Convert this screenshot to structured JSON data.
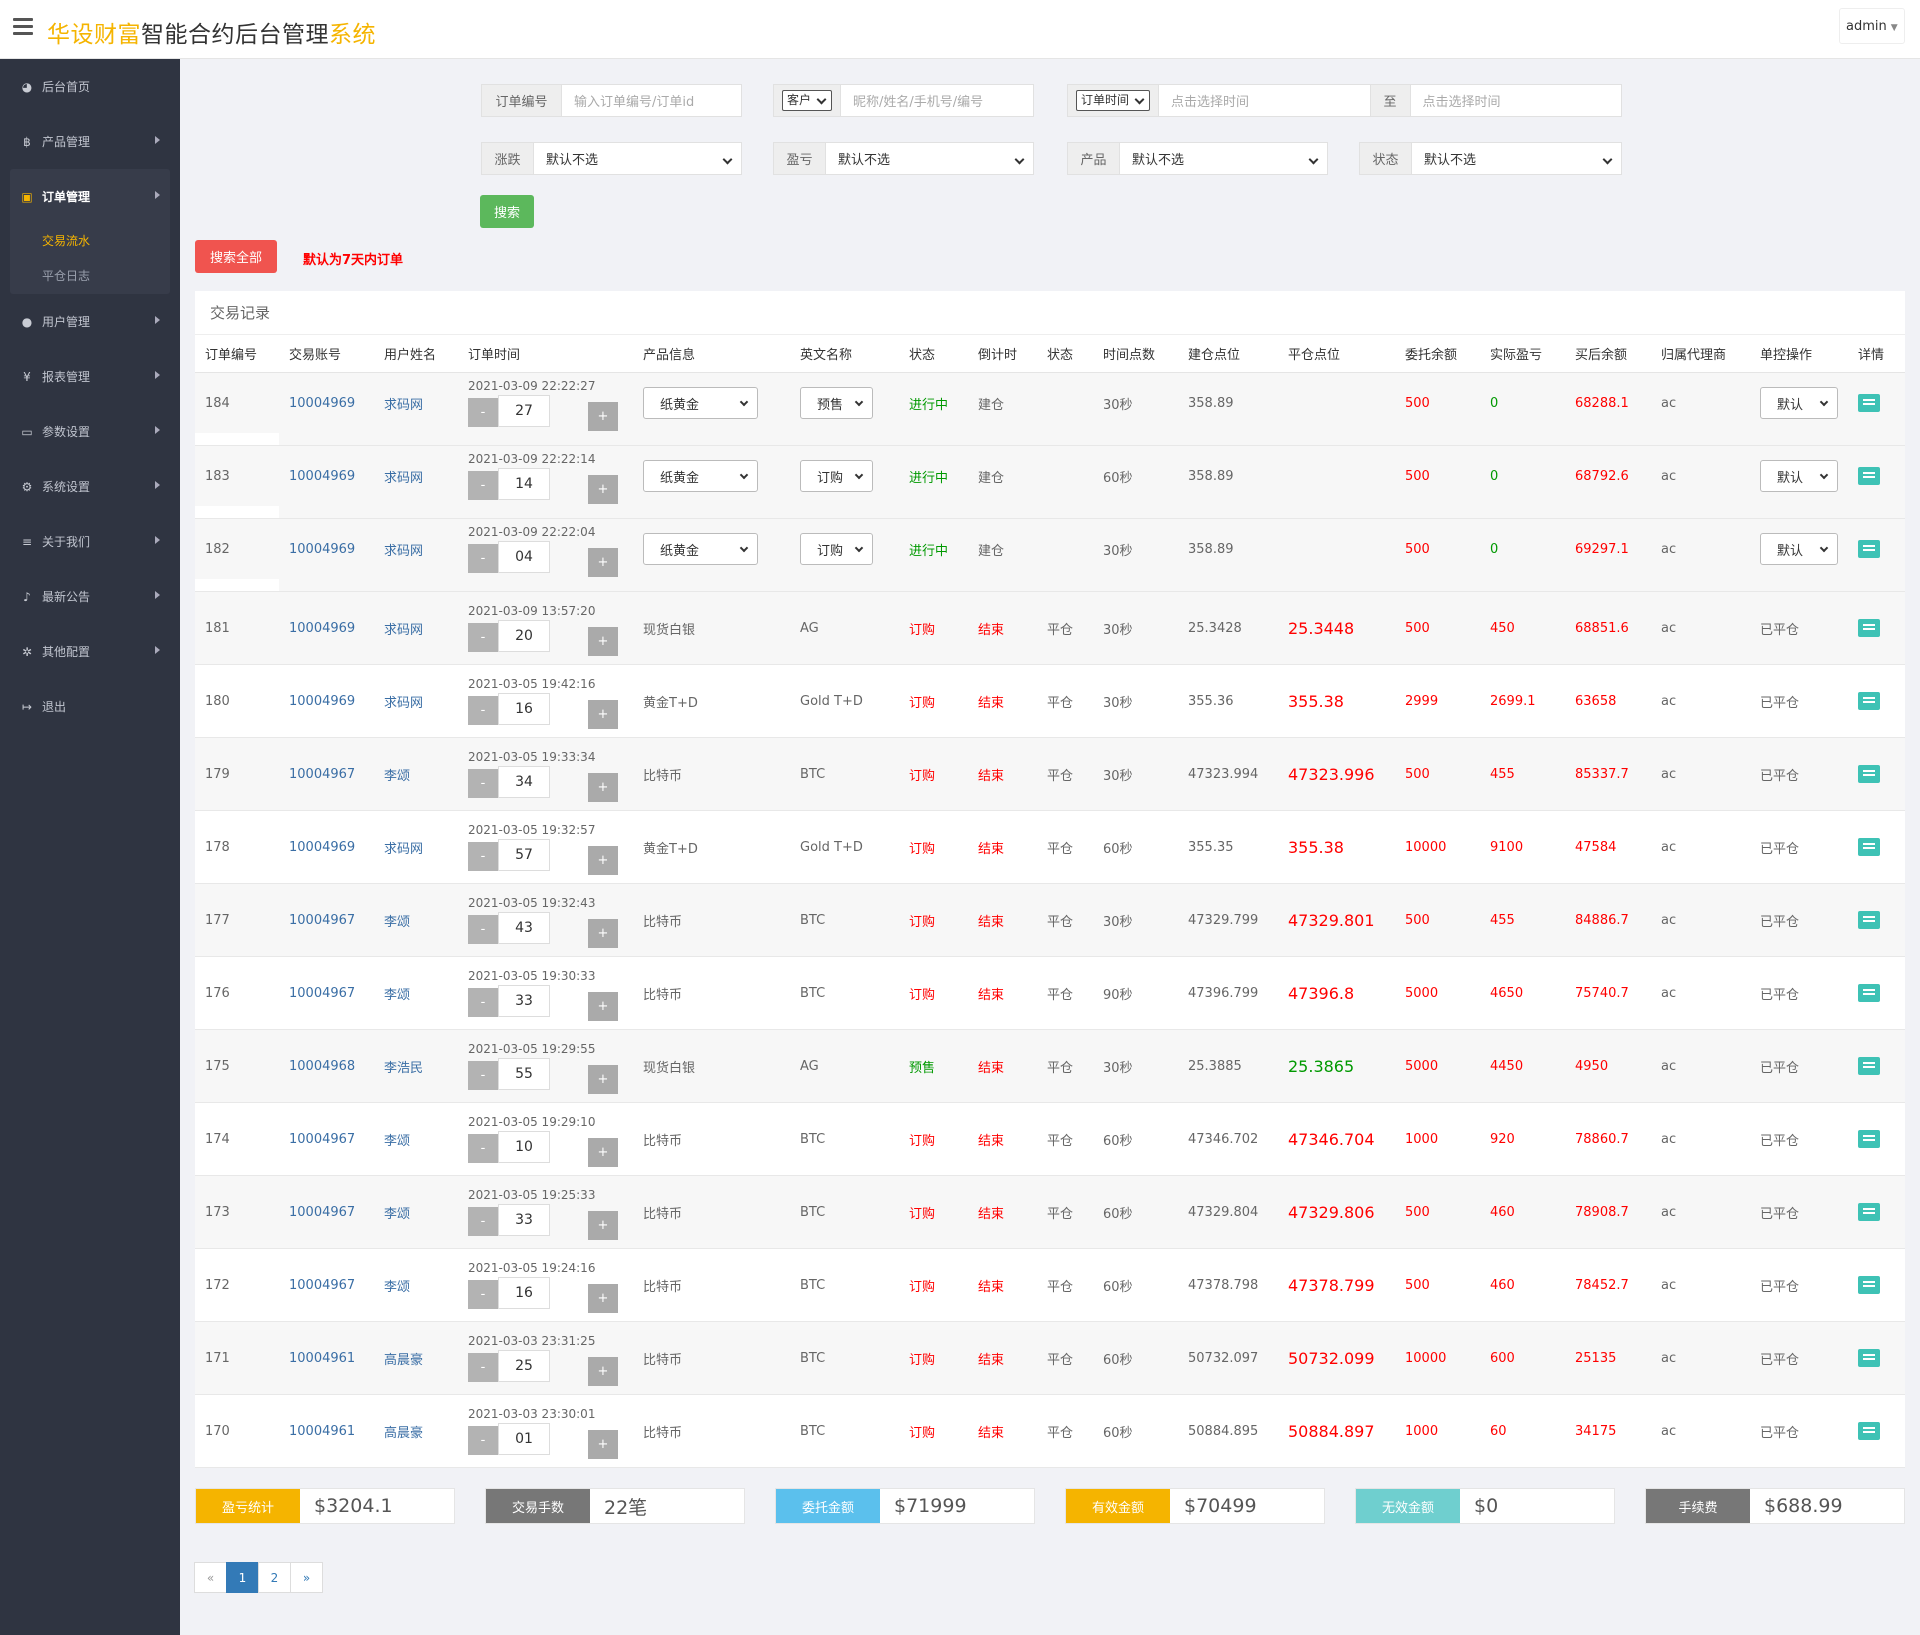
{
  "header": {
    "title_part1": "华设财富",
    "title_part2": "智能合约后台管理",
    "title_part3": "系统",
    "user": "admin"
  },
  "sidebar": {
    "items": [
      {
        "label": "后台首页",
        "icon": "dashboard-icon"
      },
      {
        "label": "产品管理",
        "icon": "bitcoin-icon"
      },
      {
        "label": "订单管理",
        "icon": "files-icon"
      },
      {
        "label": "用户管理",
        "icon": "user-icon"
      },
      {
        "label": "报表管理",
        "icon": "yen-icon"
      },
      {
        "label": "参数设置",
        "icon": "file-icon"
      },
      {
        "label": "系统设置",
        "icon": "cogs-icon"
      },
      {
        "label": "关于我们",
        "icon": "list-icon"
      },
      {
        "label": "最新公告",
        "icon": "bell-icon"
      },
      {
        "label": "其他配置",
        "icon": "gear-icon"
      },
      {
        "label": "退出",
        "icon": "sign-out-icon"
      }
    ],
    "sub": [
      {
        "label": "交易流水"
      },
      {
        "label": "平仓日志"
      }
    ]
  },
  "filters": {
    "order_no_label": "订单编号",
    "order_no_placeholder": "输入订单编号/订单id",
    "customer_select": "客户",
    "customer_placeholder": "昵称/姓名/手机号/编号",
    "time_select": "订单时间",
    "time_start_placeholder": "点击选择时间",
    "time_to": "至",
    "time_end_placeholder": "点击选择时间",
    "updown_label": "涨跌",
    "updown_value": "默认不选",
    "pl_label": "盈亏",
    "pl_value": "默认不选",
    "product_label": "产品",
    "product_value": "默认不选",
    "status_label": "状态",
    "status_value": "默认不选",
    "search_btn": "搜索",
    "search_all_btn": "搜索全部",
    "notice": "默认为7天内订单"
  },
  "table": {
    "title": "交易记录",
    "headers": [
      "订单编号",
      "交易账号",
      "用户姓名",
      "订单时间",
      "产品信息",
      "英文名称",
      "状态",
      "倒计时",
      "状态",
      "时间点数",
      "建仓点位",
      "平仓点位",
      "委托余额",
      "实际盈亏",
      "买后余额",
      "归属代理商",
      "单控操作",
      "详情"
    ],
    "rows": [
      {
        "id": "184",
        "acct": "10004969",
        "name": "求码网",
        "time": "2021-03-09 22:22:27",
        "step": "27",
        "product": "纸黄金",
        "en": "预售",
        "status": "进行中",
        "countdown": "建仓",
        "period": "30秒",
        "open": "358.89",
        "close": "",
        "entrust": "500",
        "pl": "0",
        "after": "68288.1",
        "agent": "ac",
        "ctrl": "默认",
        "active": true
      },
      {
        "id": "183",
        "acct": "10004969",
        "name": "求码网",
        "time": "2021-03-09 22:22:14",
        "step": "14",
        "product": "纸黄金",
        "en": "订购",
        "status": "进行中",
        "countdown": "建仓",
        "period": "60秒",
        "open": "358.89",
        "close": "",
        "entrust": "500",
        "pl": "0",
        "after": "68792.6",
        "agent": "ac",
        "ctrl": "默认",
        "active": true
      },
      {
        "id": "182",
        "acct": "10004969",
        "name": "求码网",
        "time": "2021-03-09 22:22:04",
        "step": "04",
        "product": "纸黄金",
        "en": "订购",
        "status": "进行中",
        "countdown": "建仓",
        "period": "30秒",
        "open": "358.89",
        "close": "",
        "entrust": "500",
        "pl": "0",
        "after": "69297.1",
        "agent": "ac",
        "ctrl": "默认",
        "active": true
      },
      {
        "id": "181",
        "acct": "10004969",
        "name": "求码网",
        "time": "2021-03-09 13:57:20",
        "step": "20",
        "product": "现货白银",
        "en": "AG",
        "dir": "订购",
        "status": "结束",
        "st2": "平仓",
        "period": "30秒",
        "open": "25.3428",
        "close": "25.3448",
        "entrust": "500",
        "pl": "450",
        "after": "68851.6",
        "agent": "ac",
        "ctrl": "已平仓"
      },
      {
        "id": "180",
        "acct": "10004969",
        "name": "求码网",
        "time": "2021-03-05 19:42:16",
        "step": "16",
        "product": "黄金T+D",
        "en": "Gold T+D",
        "dir": "订购",
        "status": "结束",
        "st2": "平仓",
        "period": "30秒",
        "open": "355.36",
        "close": "355.38",
        "entrust": "2999",
        "pl": "2699.1",
        "after": "63658",
        "agent": "ac",
        "ctrl": "已平仓"
      },
      {
        "id": "179",
        "acct": "10004967",
        "name": "李颂",
        "time": "2021-03-05 19:33:34",
        "step": "34",
        "product": "比特币",
        "en": "BTC",
        "dir": "订购",
        "status": "结束",
        "st2": "平仓",
        "period": "30秒",
        "open": "47323.994",
        "close": "47323.996",
        "entrust": "500",
        "pl": "455",
        "after": "85337.7",
        "agent": "ac",
        "ctrl": "已平仓"
      },
      {
        "id": "178",
        "acct": "10004969",
        "name": "求码网",
        "time": "2021-03-05 19:32:57",
        "step": "57",
        "product": "黄金T+D",
        "en": "Gold T+D",
        "dir": "订购",
        "status": "结束",
        "st2": "平仓",
        "period": "60秒",
        "open": "355.35",
        "close": "355.38",
        "entrust": "10000",
        "pl": "9100",
        "after": "47584",
        "agent": "ac",
        "ctrl": "已平仓"
      },
      {
        "id": "177",
        "acct": "10004967",
        "name": "李颂",
        "time": "2021-03-05 19:32:43",
        "step": "43",
        "product": "比特币",
        "en": "BTC",
        "dir": "订购",
        "status": "结束",
        "st2": "平仓",
        "period": "30秒",
        "open": "47329.799",
        "close": "47329.801",
        "entrust": "500",
        "pl": "455",
        "after": "84886.7",
        "agent": "ac",
        "ctrl": "已平仓"
      },
      {
        "id": "176",
        "acct": "10004967",
        "name": "李颂",
        "time": "2021-03-05 19:30:33",
        "step": "33",
        "product": "比特币",
        "en": "BTC",
        "dir": "订购",
        "status": "结束",
        "st2": "平仓",
        "period": "90秒",
        "open": "47396.799",
        "close": "47396.8",
        "entrust": "5000",
        "pl": "4650",
        "after": "75740.7",
        "agent": "ac",
        "ctrl": "已平仓"
      },
      {
        "id": "175",
        "acct": "10004968",
        "name": "李浩民",
        "time": "2021-03-05 19:29:55",
        "step": "55",
        "product": "现货白银",
        "en": "AG",
        "dir": "预售",
        "status": "结束",
        "st2": "平仓",
        "period": "30秒",
        "open": "25.3885",
        "close": "25.3865",
        "entrust": "5000",
        "pl": "4450",
        "after": "4950",
        "agent": "ac",
        "ctrl": "已平仓",
        "down": true
      },
      {
        "id": "174",
        "acct": "10004967",
        "name": "李颂",
        "time": "2021-03-05 19:29:10",
        "step": "10",
        "product": "比特币",
        "en": "BTC",
        "dir": "订购",
        "status": "结束",
        "st2": "平仓",
        "period": "60秒",
        "open": "47346.702",
        "close": "47346.704",
        "entrust": "1000",
        "pl": "920",
        "after": "78860.7",
        "agent": "ac",
        "ctrl": "已平仓"
      },
      {
        "id": "173",
        "acct": "10004967",
        "name": "李颂",
        "time": "2021-03-05 19:25:33",
        "step": "33",
        "product": "比特币",
        "en": "BTC",
        "dir": "订购",
        "status": "结束",
        "st2": "平仓",
        "period": "60秒",
        "open": "47329.804",
        "close": "47329.806",
        "entrust": "500",
        "pl": "460",
        "after": "78908.7",
        "agent": "ac",
        "ctrl": "已平仓"
      },
      {
        "id": "172",
        "acct": "10004967",
        "name": "李颂",
        "time": "2021-03-05 19:24:16",
        "step": "16",
        "product": "比特币",
        "en": "BTC",
        "dir": "订购",
        "status": "结束",
        "st2": "平仓",
        "period": "60秒",
        "open": "47378.798",
        "close": "47378.799",
        "entrust": "500",
        "pl": "460",
        "after": "78452.7",
        "agent": "ac",
        "ctrl": "已平仓"
      },
      {
        "id": "171",
        "acct": "10004961",
        "name": "高晨豪",
        "time": "2021-03-03 23:31:25",
        "step": "25",
        "product": "比特币",
        "en": "BTC",
        "dir": "订购",
        "status": "结束",
        "st2": "平仓",
        "period": "60秒",
        "open": "50732.097",
        "close": "50732.099",
        "entrust": "10000",
        "pl": "600",
        "after": "25135",
        "agent": "ac",
        "ctrl": "已平仓"
      },
      {
        "id": "170",
        "acct": "10004961",
        "name": "高晨豪",
        "time": "2021-03-03 23:30:01",
        "step": "01",
        "product": "比特币",
        "en": "BTC",
        "dir": "订购",
        "status": "结束",
        "st2": "平仓",
        "period": "60秒",
        "open": "50884.895",
        "close": "50884.897",
        "entrust": "1000",
        "pl": "60",
        "after": "34175",
        "agent": "ac",
        "ctrl": "已平仓"
      }
    ]
  },
  "stats": [
    {
      "label": "盈亏统计",
      "value": "$3204.1",
      "color": "#f5b400"
    },
    {
      "label": "交易手数",
      "value": "22笔",
      "color": "#777777"
    },
    {
      "label": "委托金额",
      "value": "$71999",
      "color": "#5bc0ed"
    },
    {
      "label": "有效金额",
      "value": "$70499",
      "color": "#f5b400"
    },
    {
      "label": "无效金额",
      "value": "$0",
      "color": "#6fcfcf"
    },
    {
      "label": "手续费",
      "value": "$688.99",
      "color": "#777777"
    }
  ],
  "pager": {
    "prev": "«",
    "pages": [
      "1",
      "2"
    ],
    "next": "»"
  },
  "colors": {
    "accent": "#f5b400",
    "sidebar": "#2f3441",
    "search": "#5cb85c",
    "search_all": "#f0544f"
  }
}
